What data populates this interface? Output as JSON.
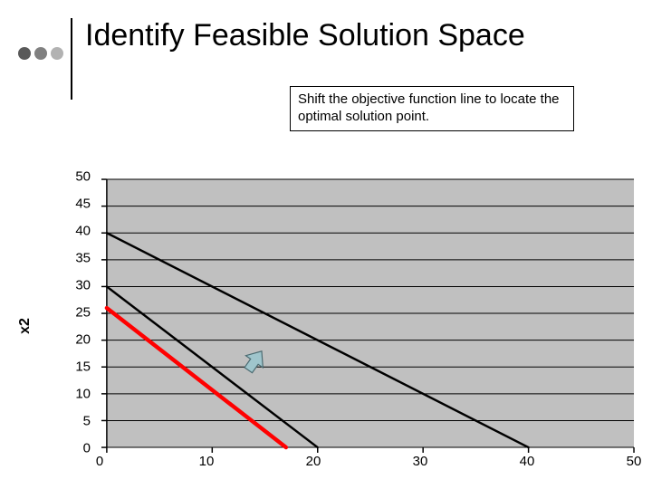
{
  "header": {
    "title": "Identify Feasible Solution Space",
    "dot_colors": [
      "#595959",
      "#808080",
      "#b2b2b2"
    ],
    "vline_color": "#000000"
  },
  "note": {
    "text": "Shift the objective function line to locate the optimal solution point.",
    "border_color": "#000000",
    "bg_color": "#ffffff",
    "fontsize": 15
  },
  "chart": {
    "type": "line",
    "background_color": "#c0c0c0",
    "grid_color": "#000000",
    "grid_width": 1,
    "axis_color": "#000000",
    "xlim": [
      0,
      50
    ],
    "ylim": [
      0,
      50
    ],
    "xtick_step": 10,
    "ytick_step": 5,
    "xticks": [
      0,
      10,
      20,
      30,
      40,
      50
    ],
    "yticks": [
      0,
      5,
      10,
      15,
      20,
      25,
      30,
      35,
      40,
      45,
      50
    ],
    "ylabel": "x2",
    "label_fontsize": 16,
    "tick_fontsize": 15,
    "lines": [
      {
        "name": "constraint-black-1",
        "color": "#000000",
        "width": 2.5,
        "points": [
          [
            0,
            40
          ],
          [
            40,
            0
          ]
        ]
      },
      {
        "name": "constraint-black-2",
        "color": "#000000",
        "width": 2.5,
        "points": [
          [
            0,
            30
          ],
          [
            20,
            0
          ]
        ]
      },
      {
        "name": "objective-red",
        "color": "#ff0000",
        "width": 4.5,
        "points": [
          [
            0,
            26
          ],
          [
            17,
            0
          ]
        ]
      }
    ],
    "arrow": {
      "name": "shift-arrow",
      "fill_color": "#9fc5cc",
      "stroke_color": "#4a6a70",
      "tip": [
        14,
        16
      ],
      "angle_deg": 35,
      "size": 26
    }
  }
}
